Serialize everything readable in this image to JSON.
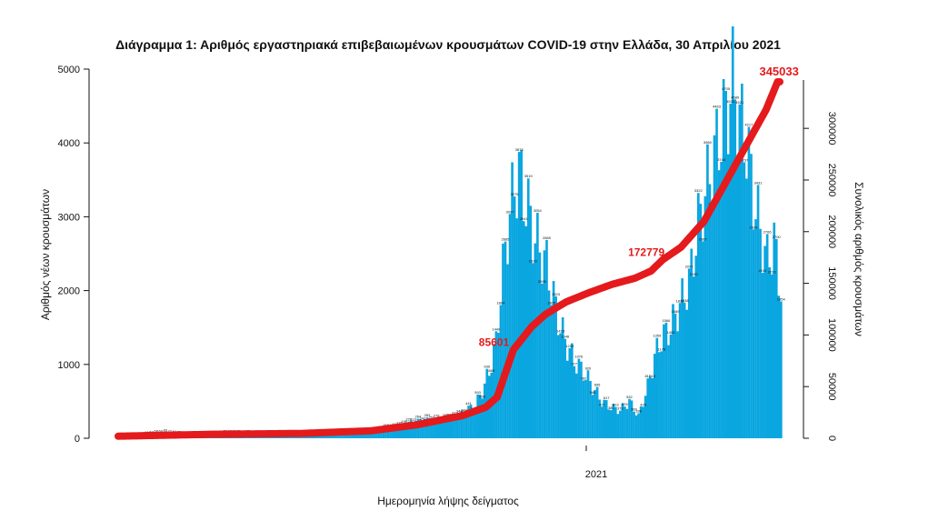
{
  "chart_data": {
    "type": "bar",
    "title": "Διάγραμμα 1: Αριθμός εργαστηριακά επιβεβαιωμένων κρουσμάτων COVID-19 στην Ελλάδα, 30 Απριλίου 2021",
    "xlabel": "Ημερομηνία λήψης δείγματος",
    "ylabel": "Αριθμός νέων κρουσμάτων",
    "y2label": "Συνολικός αριθμός κρουσμάτων",
    "x_tick_labels": [
      "2021"
    ],
    "ylim": [
      0,
      5000
    ],
    "y2lim": [
      0,
      345033
    ],
    "y_ticks": [
      0,
      1000,
      2000,
      3000,
      4000,
      5000
    ],
    "y2_ticks": [
      0,
      50000,
      100000,
      150000,
      200000,
      250000,
      300000
    ],
    "bar_color": "#0aa6e0",
    "line_color": "#e41a1c",
    "annotations": [
      {
        "text": "85601",
        "x_index": 172,
        "value": 85601
      },
      {
        "text": "172779",
        "x_index": 237,
        "value": 172779
      },
      {
        "text": "345033",
        "x_index": 287,
        "value": 345033
      }
    ],
    "series": [
      {
        "type": "bar",
        "daily_keypoints": [
          [
            0,
            20
          ],
          [
            10,
            40
          ],
          [
            20,
            80
          ],
          [
            30,
            40
          ],
          [
            40,
            55
          ],
          [
            50,
            70
          ],
          [
            60,
            60
          ],
          [
            70,
            45
          ],
          [
            80,
            35
          ],
          [
            90,
            40
          ],
          [
            100,
            55
          ],
          [
            110,
            85
          ],
          [
            115,
            140
          ],
          [
            120,
            160
          ],
          [
            125,
            210
          ],
          [
            130,
            250
          ],
          [
            135,
            270
          ],
          [
            140,
            260
          ],
          [
            145,
            300
          ],
          [
            150,
            360
          ],
          [
            155,
            450
          ],
          [
            158,
            640
          ],
          [
            161,
            900
          ],
          [
            164,
            1300
          ],
          [
            167,
            2300
          ],
          [
            170,
            3050
          ],
          [
            172,
            3400
          ],
          [
            174,
            3606
          ],
          [
            176,
            3300
          ],
          [
            178,
            3100
          ],
          [
            180,
            2800
          ],
          [
            183,
            2550
          ],
          [
            186,
            2350
          ],
          [
            189,
            1900
          ],
          [
            192,
            1500
          ],
          [
            195,
            1250
          ],
          [
            198,
            1050
          ],
          [
            202,
            900
          ],
          [
            206,
            700
          ],
          [
            210,
            500
          ],
          [
            214,
            420
          ],
          [
            218,
            380
          ],
          [
            222,
            500
          ],
          [
            226,
            300
          ],
          [
            230,
            700
          ],
          [
            233,
            1100
          ],
          [
            236,
            1350
          ],
          [
            240,
            1500
          ],
          [
            244,
            1800
          ],
          [
            248,
            2100
          ],
          [
            252,
            2900
          ],
          [
            255,
            3300
          ],
          [
            258,
            3700
          ],
          [
            261,
            4067
          ],
          [
            264,
            4400
          ],
          [
            267,
            4810
          ],
          [
            270,
            4300
          ],
          [
            273,
            4000
          ],
          [
            276,
            3300
          ],
          [
            279,
            2800
          ],
          [
            282,
            2400
          ],
          [
            285,
            2650
          ],
          [
            288,
            2005
          ]
        ]
      },
      {
        "type": "line",
        "name": "",
        "cumulative_keypoints": [
          [
            0,
            2000
          ],
          [
            40,
            3800
          ],
          [
            80,
            4700
          ],
          [
            110,
            7200
          ],
          [
            130,
            13000
          ],
          [
            150,
            22000
          ],
          [
            160,
            30000
          ],
          [
            165,
            40000
          ],
          [
            172,
            85601
          ],
          [
            180,
            108000
          ],
          [
            186,
            120000
          ],
          [
            195,
            132000
          ],
          [
            205,
            141000
          ],
          [
            215,
            149000
          ],
          [
            225,
            155000
          ],
          [
            232,
            162000
          ],
          [
            237,
            172779
          ],
          [
            245,
            185000
          ],
          [
            255,
            210000
          ],
          [
            265,
            250000
          ],
          [
            275,
            290000
          ],
          [
            282,
            318000
          ],
          [
            287,
            345033
          ]
        ]
      }
    ],
    "n_days": 288
  }
}
